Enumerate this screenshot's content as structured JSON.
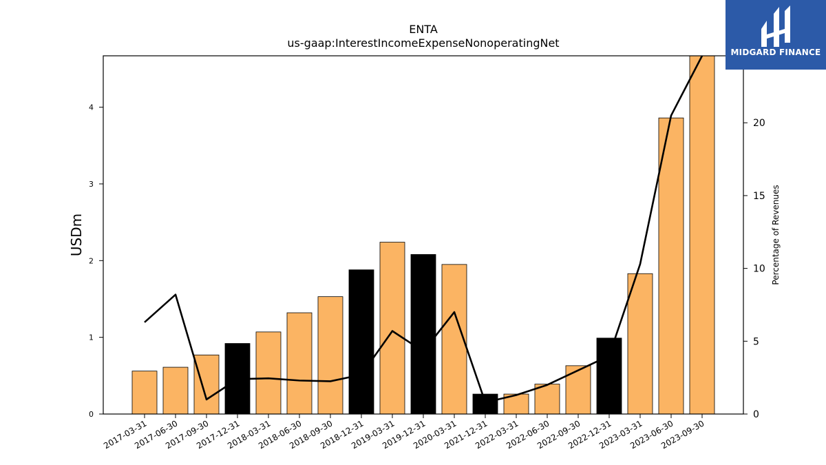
{
  "chart_data": {
    "type": "bar",
    "title": "ENTA",
    "subtitle": "us-gaap:InterestIncomeExpenseNonoperatingNet",
    "ylabel": "USDm",
    "y2label": "Percentage of Revenues",
    "ylim": [
      0,
      4.67
    ],
    "y2lim": [
      0,
      24.6
    ],
    "yticks": [
      0,
      1,
      2,
      3,
      4
    ],
    "y2ticks": [
      0,
      5,
      10,
      15,
      20
    ],
    "categories": [
      "2017-03-31",
      "2017-06-30",
      "2017-09-30",
      "2017-12-31",
      "2018-03-31",
      "2018-06-30",
      "2018-09-30",
      "2018-12-31",
      "2019-03-31",
      "2019-12-31",
      "2020-03-31",
      "2021-12-31",
      "2022-03-31",
      "2022-06-30",
      "2022-09-30",
      "2022-12-31",
      "2023-03-31",
      "2023-06-30",
      "2023-09-30"
    ],
    "series": [
      {
        "type": "bar",
        "values": [
          0.56,
          0.61,
          0.77,
          0.92,
          1.07,
          1.32,
          1.53,
          1.88,
          2.24,
          2.08,
          1.95,
          0.26,
          0.26,
          0.39,
          0.63,
          0.99,
          1.83,
          3.86,
          4.67
        ],
        "annual": [
          false,
          false,
          false,
          true,
          false,
          false,
          false,
          true,
          false,
          true,
          false,
          true,
          false,
          false,
          false,
          true,
          false,
          false,
          false
        ]
      },
      {
        "type": "line",
        "axis": "right",
        "values": [
          6.3,
          8.2,
          1.0,
          2.4,
          2.45,
          2.3,
          2.25,
          2.7,
          5.7,
          4.3,
          7.0,
          0.8,
          1.3,
          2.0,
          3.0,
          4.0,
          10.3,
          20.5,
          24.6
        ]
      }
    ],
    "colors": {
      "quarter_bar": "#fbb463",
      "annual_bar": "#000000",
      "line": "#000000"
    },
    "grid": false
  },
  "logo": {
    "text": "MIDGARD FINANCE",
    "background": "#2c5aa8"
  }
}
